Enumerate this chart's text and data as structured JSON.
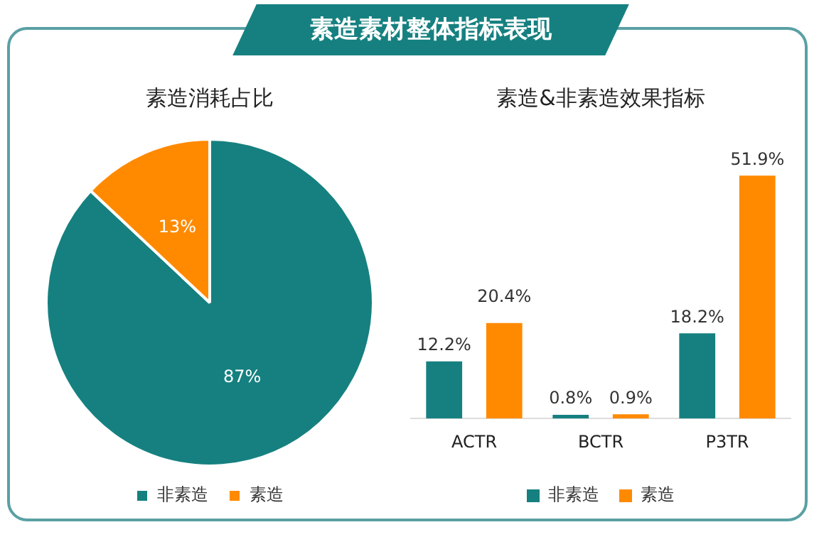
{
  "chart_data": [
    {
      "type": "pie",
      "title": "素造消耗占比",
      "annotations": [
        "素造素材整体指标表现"
      ],
      "categories": [
        "非素造",
        "素造"
      ],
      "values": [
        87,
        13
      ],
      "colors": [
        "#168080",
        "#ff8a00"
      ],
      "value_labels": [
        "87%",
        "13%"
      ],
      "legend": "bottom"
    },
    {
      "type": "bar",
      "title": "素造&非素造效果指标",
      "categories": [
        "ACTR",
        "BCTR",
        "P3TR"
      ],
      "legend": "bottom",
      "tick_labels": "x",
      "grid": false,
      "series": [
        {
          "name": "非素造",
          "color": "#168080",
          "values": [
            12.2,
            0.8,
            18.2
          ],
          "value_labels": [
            "12.2%",
            "0.8%",
            "18.2%"
          ]
        },
        {
          "name": "素造",
          "color": "#ff8a00",
          "values": [
            20.4,
            0.9,
            51.9
          ],
          "value_labels": [
            "20.4%",
            "0.9%",
            "51.9%"
          ]
        }
      ]
    }
  ]
}
